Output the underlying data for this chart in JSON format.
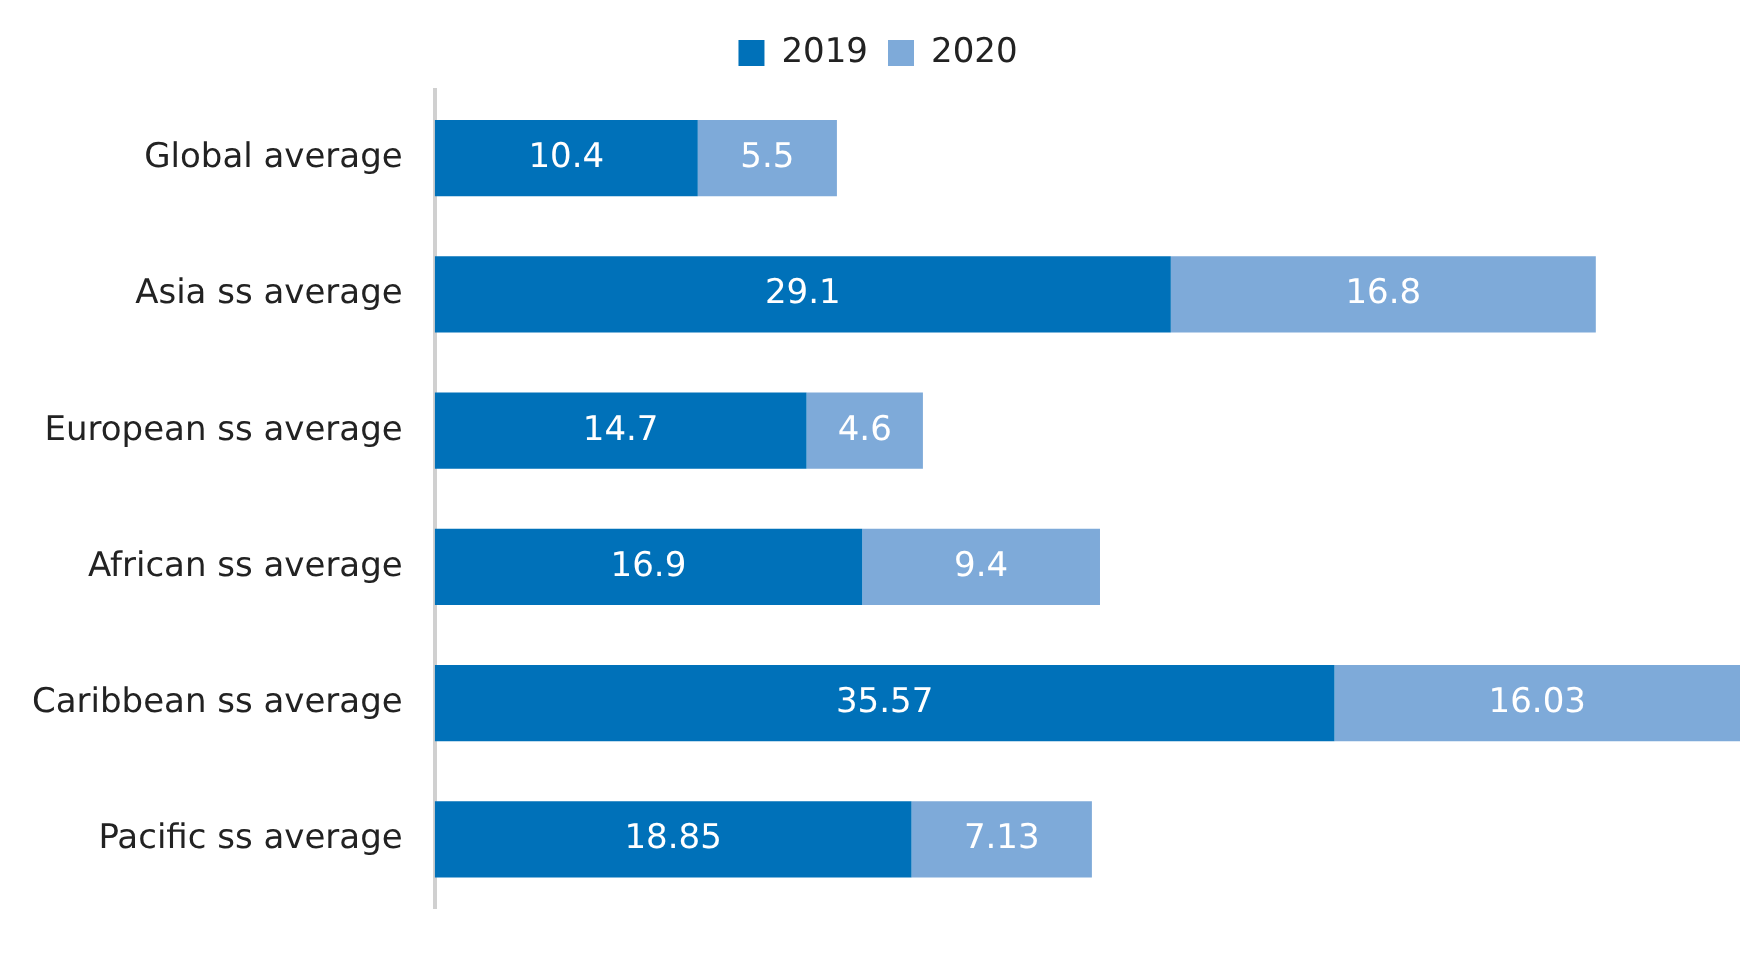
{
  "chart_data": {
    "type": "bar",
    "orientation": "horizontal",
    "stacked": true,
    "data_labels": true,
    "legend": "top",
    "categories": [
      "Global average",
      "Asia ss average",
      "European ss average",
      "African ss average",
      "Caribbean ss average",
      "Pacific ss average"
    ],
    "series": [
      {
        "name": "2019",
        "color": "#0071b9",
        "values": [
          10.4,
          29.1,
          14.7,
          16.9,
          35.57,
          18.85
        ]
      },
      {
        "name": "2020",
        "color": "#7eaad9",
        "values": [
          5.5,
          16.8,
          4.6,
          9.4,
          16.03,
          7.13
        ]
      }
    ]
  }
}
